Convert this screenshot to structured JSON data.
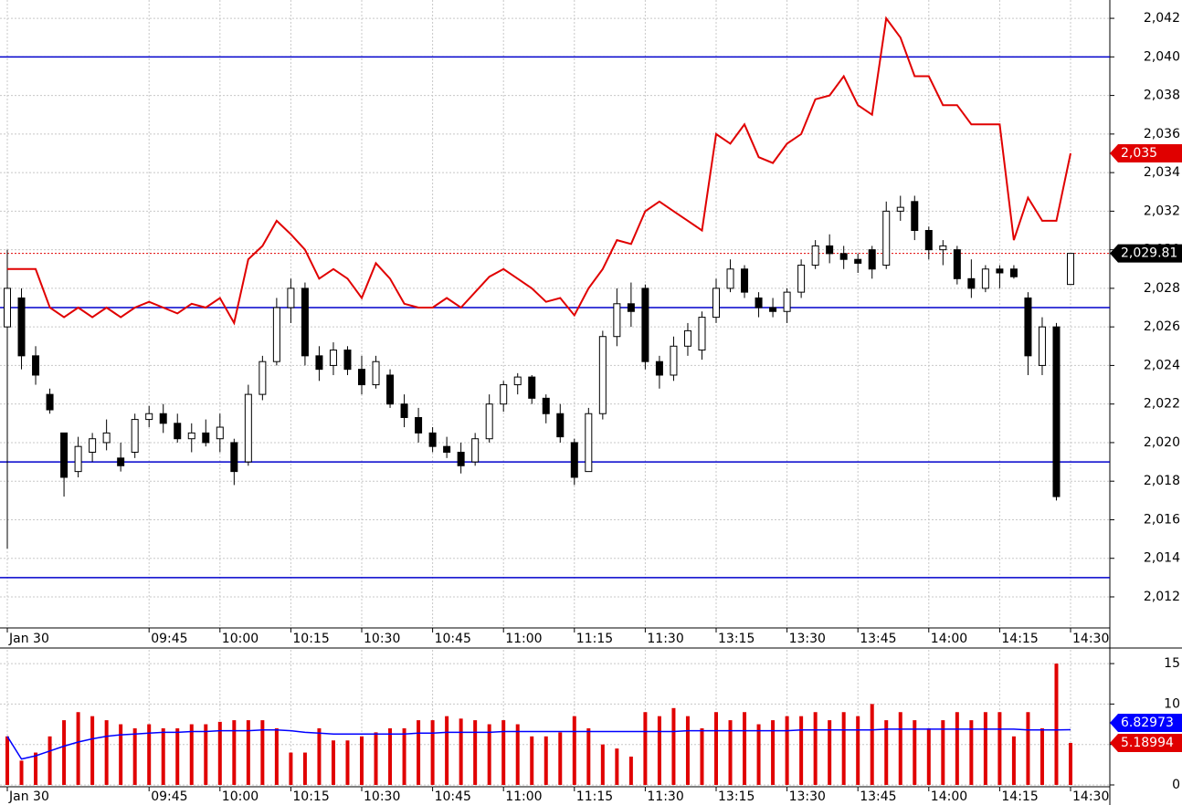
{
  "chart_data": [
    {
      "type": "candlestick",
      "categories": [
        "Jan 30",
        null,
        null,
        null,
        null,
        null,
        null,
        null,
        null,
        null,
        "09:45",
        null,
        null,
        null,
        null,
        "10:00",
        null,
        null,
        null,
        null,
        "10:15",
        null,
        null,
        null,
        null,
        "10:30",
        null,
        null,
        null,
        null,
        "10:45",
        null,
        null,
        null,
        null,
        "11:00",
        null,
        null,
        null,
        null,
        "11:15",
        null,
        null,
        null,
        null,
        "11:30",
        null,
        null,
        null,
        null,
        "13:15",
        null,
        null,
        null,
        null,
        "13:30",
        null,
        null,
        null,
        null,
        "13:45",
        null,
        null,
        null,
        null,
        "14:00",
        null,
        null,
        null,
        null,
        "14:15",
        null,
        null,
        null,
        null,
        "14:30"
      ],
      "open": [
        2026,
        2027.5,
        2024.5,
        2022.5,
        2020.5,
        2018.5,
        2019.5,
        2020,
        2019.2,
        2019.5,
        2021.2,
        2021.5,
        2021,
        2020.2,
        2020.5,
        2020.2,
        2020,
        2019,
        2022.5,
        2024.2,
        2027,
        2028,
        2024.5,
        2024,
        2024.8,
        2023.8,
        2023,
        2023.5,
        2022,
        2021.3,
        2020.5,
        2019.8,
        2019.5,
        2019,
        2020.2,
        2022,
        2023,
        2023.4,
        2022.3,
        2021.5,
        2020,
        2018.5,
        2021.5,
        2025.5,
        2027.2,
        2028,
        2024.2,
        2023.5,
        2025,
        2024.8,
        2026.5,
        2028,
        2029,
        2027.5,
        2027,
        2026.8,
        2027.8,
        2029.2,
        2030.2,
        2029.8,
        2029.5,
        2030,
        2029.2,
        2032,
        2032.5,
        2031,
        2030,
        2030,
        2028.5,
        2028,
        2029,
        2029,
        2027.5,
        2024,
        2026,
        2028.2
      ],
      "high": [
        2030,
        2028,
        2025,
        2022.8,
        2020.5,
        2020.3,
        2020.5,
        2021.2,
        2020,
        2021.5,
        2021.9,
        2022,
        2021.5,
        2021,
        2021.2,
        2021.5,
        2020.2,
        2023,
        2024.5,
        2027.5,
        2028.5,
        2028.3,
        2025,
        2025.2,
        2025,
        2024.5,
        2024.5,
        2023.8,
        2022.5,
        2021.8,
        2020.8,
        2020.3,
        2020,
        2020.5,
        2022.5,
        2023.2,
        2023.6,
        2023.5,
        2022.5,
        2022,
        2020.2,
        2021.8,
        2025.8,
        2028,
        2028.3,
        2028.2,
        2024.5,
        2025.5,
        2026.2,
        2026.8,
        2028.5,
        2029.5,
        2029.2,
        2027.8,
        2027.5,
        2028,
        2029.5,
        2030.5,
        2030.8,
        2030.2,
        2029.8,
        2030.2,
        2032.5,
        2032.8,
        2032.8,
        2031.2,
        2030.5,
        2030.2,
        2029.5,
        2029.2,
        2029.2,
        2029.2,
        2027.8,
        2026.5,
        2026.2,
        2029.81
      ],
      "low": [
        2014.5,
        2023.8,
        2023,
        2021.5,
        2017.2,
        2018.2,
        2019,
        2019.6,
        2018.5,
        2019.2,
        2020.8,
        2020.5,
        2020,
        2019.5,
        2019.8,
        2019.5,
        2017.8,
        2018.8,
        2022.2,
        2024,
        2026.2,
        2024,
        2023.2,
        2023.5,
        2023.5,
        2022.5,
        2022.8,
        2021.8,
        2020.8,
        2020,
        2019.5,
        2019.2,
        2018.4,
        2018.8,
        2020,
        2021.6,
        2022.5,
        2022,
        2021,
        2020,
        2017.8,
        2018.5,
        2021.2,
        2025,
        2026,
        2023.8,
        2022.8,
        2023.2,
        2024.5,
        2024.3,
        2026.2,
        2027.8,
        2027.5,
        2026.5,
        2026.5,
        2026.2,
        2027.5,
        2029,
        2029.3,
        2029,
        2028.8,
        2028.5,
        2029,
        2031.5,
        2030.5,
        2029.5,
        2029.2,
        2028.2,
        2027.5,
        2027.8,
        2028,
        2028.5,
        2023.5,
        2023.5,
        2017,
        2028.2
      ],
      "close": [
        2028,
        2024.5,
        2023.5,
        2021.7,
        2018.2,
        2019.8,
        2020.2,
        2020.5,
        2018.8,
        2021.2,
        2021.5,
        2021,
        2020.2,
        2020.5,
        2020,
        2020.8,
        2018.5,
        2022.5,
        2024.2,
        2027,
        2028,
        2024.5,
        2023.8,
        2024.8,
        2023.8,
        2023,
        2024.2,
        2022,
        2021.3,
        2020.5,
        2019.8,
        2019.5,
        2018.8,
        2020.2,
        2022,
        2023,
        2023.4,
        2022.3,
        2021.5,
        2020.3,
        2018.2,
        2021.5,
        2025.5,
        2027.2,
        2026.8,
        2024.2,
        2023.5,
        2025,
        2025.8,
        2026.5,
        2028,
        2029,
        2027.8,
        2027,
        2026.8,
        2027.8,
        2029.2,
        2030.2,
        2029.8,
        2029.5,
        2029.3,
        2029,
        2032,
        2032.2,
        2031,
        2030,
        2030.2,
        2028.5,
        2028,
        2029,
        2028.8,
        2028.6,
        2024.5,
        2026,
        2017.2,
        2029.81
      ],
      "overlay": {
        "color": "#e00000",
        "values": [
          2029,
          2029,
          2029,
          2027,
          2026.5,
          2027,
          2026.5,
          2027,
          2026.5,
          2027,
          2027.3,
          2027,
          2026.7,
          2027.2,
          2027,
          2027.5,
          2026.2,
          2029.5,
          2030.2,
          2031.5,
          2030.8,
          2030,
          2028.5,
          2029,
          2028.5,
          2027.5,
          2029.3,
          2028.5,
          2027.2,
          2027,
          2027,
          2027.5,
          2027,
          2027.8,
          2028.6,
          2029,
          2028.5,
          2028,
          2027.3,
          2027.5,
          2026.6,
          2028,
          2029,
          2030.5,
          2030.3,
          2032,
          2032.5,
          2032,
          2031.5,
          2031,
          2036,
          2035.5,
          2036.5,
          2034.8,
          2034.5,
          2035.5,
          2036,
          2037.8,
          2038,
          2039,
          2037.5,
          2037,
          2042,
          2041,
          2039,
          2039,
          2037.5,
          2037.5,
          2036.5,
          2036.5,
          2036.5,
          2030.5,
          2032.7,
          2031.5,
          2031.5,
          2035
        ]
      },
      "overlay_last": {
        "value": 2035,
        "label": "2,035"
      },
      "last_price": {
        "value": 2029.81,
        "label": "2,029.81"
      },
      "levels": {
        "color": "#0000cc",
        "values": [
          2040,
          2027,
          2019,
          2013
        ]
      },
      "ylim": [
        2010.39,
        2042.95
      ],
      "yticks": [
        {
          "value": 2012,
          "label": "2,012"
        },
        {
          "value": 2014,
          "label": "2,014"
        },
        {
          "value": 2016,
          "label": "2,016"
        },
        {
          "value": 2018,
          "label": "2,018"
        },
        {
          "value": 2020,
          "label": "2,020"
        },
        {
          "value": 2022,
          "label": "2,022"
        },
        {
          "value": 2024,
          "label": "2,024"
        },
        {
          "value": 2026,
          "label": "2,026"
        },
        {
          "value": 2028,
          "label": "2,028"
        },
        {
          "value": 2030,
          "label": "2,030"
        },
        {
          "value": 2032,
          "label": "2,032"
        },
        {
          "value": 2034,
          "label": "2,034"
        },
        {
          "value": 2036,
          "label": "2,036"
        },
        {
          "value": 2038,
          "label": "2,038"
        },
        {
          "value": 2040,
          "label": "2,040"
        },
        {
          "value": 2042,
          "label": "2,042"
        }
      ],
      "grid": true
    },
    {
      "type": "bar",
      "categories": [
        "Jan 30",
        null,
        null,
        null,
        null,
        null,
        null,
        null,
        null,
        null,
        "09:45",
        null,
        null,
        null,
        null,
        "10:00",
        null,
        null,
        null,
        null,
        "10:15",
        null,
        null,
        null,
        null,
        "10:30",
        null,
        null,
        null,
        null,
        "10:45",
        null,
        null,
        null,
        null,
        "11:00",
        null,
        null,
        null,
        null,
        "11:15",
        null,
        null,
        null,
        null,
        "11:30",
        null,
        null,
        null,
        null,
        "13:15",
        null,
        null,
        null,
        null,
        "13:30",
        null,
        null,
        null,
        null,
        "13:45",
        null,
        null,
        null,
        null,
        "14:00",
        null,
        null,
        null,
        null,
        "14:15",
        null,
        null,
        null,
        null,
        "14:30"
      ],
      "values": [
        6,
        3,
        4,
        6,
        8,
        9,
        8.5,
        8,
        7.5,
        7,
        7.5,
        7,
        7,
        7.5,
        7.5,
        7.8,
        8,
        8,
        8,
        7,
        4,
        4,
        7,
        5.5,
        5.5,
        6,
        6.5,
        7,
        7,
        8,
        8,
        8.5,
        8.2,
        8,
        7.5,
        8,
        7.5,
        6,
        6,
        6.5,
        8.5,
        7,
        5,
        4.5,
        3.5,
        9,
        8.5,
        9.5,
        8.5,
        7,
        9,
        8,
        9,
        7.5,
        8,
        8.5,
        8.5,
        9,
        8,
        9,
        8.5,
        10,
        8,
        9,
        8,
        7,
        8,
        9,
        8,
        9,
        9,
        6,
        9,
        7,
        15,
        5.18994
      ],
      "color": "#e00000",
      "line": {
        "color": "#0000ff",
        "values": [
          6.0,
          3.2,
          3.6,
          4.2,
          4.8,
          5.3,
          5.7,
          6.0,
          6.2,
          6.3,
          6.4,
          6.5,
          6.5,
          6.6,
          6.6,
          6.7,
          6.7,
          6.7,
          6.8,
          6.8,
          6.7,
          6.5,
          6.4,
          6.3,
          6.3,
          6.3,
          6.3,
          6.3,
          6.3,
          6.4,
          6.4,
          6.5,
          6.5,
          6.5,
          6.5,
          6.6,
          6.6,
          6.6,
          6.6,
          6.6,
          6.6,
          6.6,
          6.6,
          6.6,
          6.6,
          6.6,
          6.6,
          6.6,
          6.7,
          6.7,
          6.7,
          6.7,
          6.7,
          6.7,
          6.7,
          6.7,
          6.8,
          6.8,
          6.8,
          6.8,
          6.8,
          6.8,
          6.9,
          6.9,
          6.9,
          6.9,
          6.9,
          6.9,
          6.9,
          6.9,
          6.9,
          6.9,
          6.8,
          6.8,
          6.8,
          6.82973
        ]
      },
      "ylim": [
        0,
        16.7
      ],
      "yticks": [
        0,
        5,
        10,
        15
      ],
      "grid": true
    }
  ]
}
